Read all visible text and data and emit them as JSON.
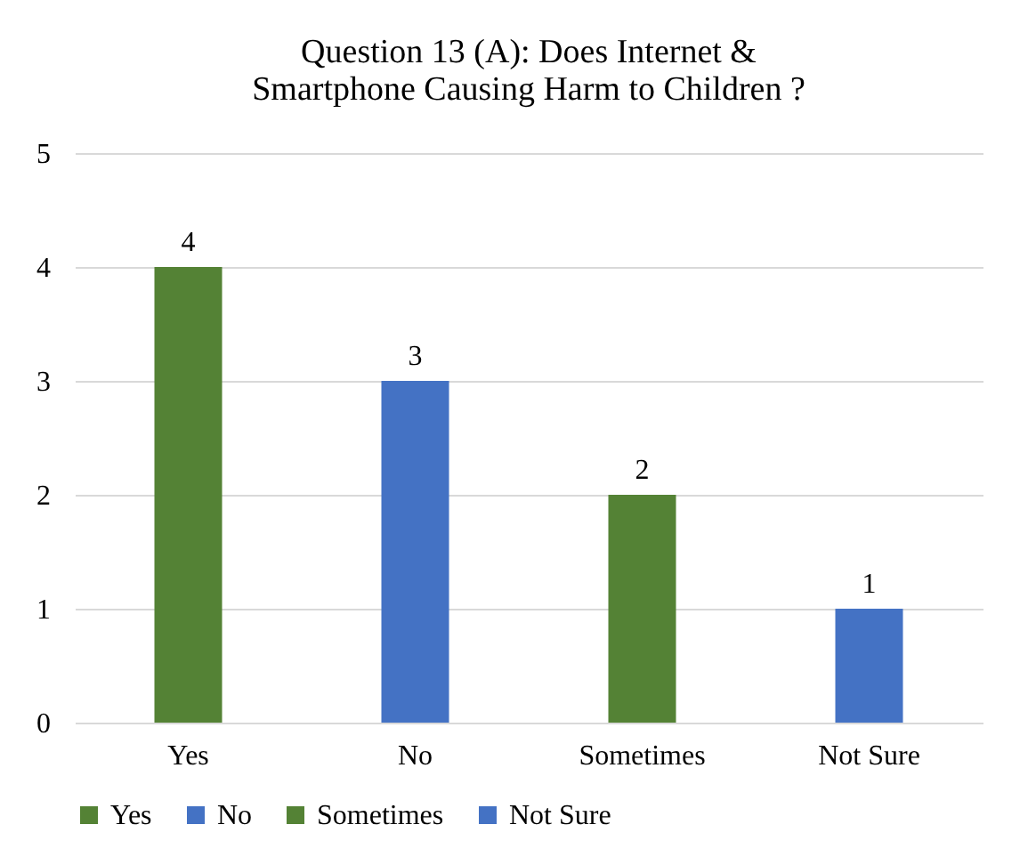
{
  "chart_data": {
    "type": "bar",
    "title": "Question 13 (A): Does Internet & Smartphone Causing Harm to Children ?",
    "categories": [
      "Yes",
      "No",
      "Sometimes",
      "Not Sure"
    ],
    "series": [
      {
        "name": "Yes",
        "color": "#548235",
        "values": [
          4,
          null,
          null,
          null
        ]
      },
      {
        "name": "No",
        "color": "#4472c4",
        "values": [
          null,
          3,
          null,
          null
        ]
      },
      {
        "name": "Sometimes",
        "color": "#548235",
        "values": [
          null,
          null,
          2,
          null
        ]
      },
      {
        "name": "Not Sure",
        "color": "#4472c4",
        "values": [
          null,
          null,
          null,
          1
        ]
      }
    ],
    "ylim": [
      0,
      5
    ],
    "yticks": [
      0,
      1,
      2,
      3,
      4,
      5
    ],
    "grid": "y",
    "legend": "bottom",
    "data_labels": true
  }
}
